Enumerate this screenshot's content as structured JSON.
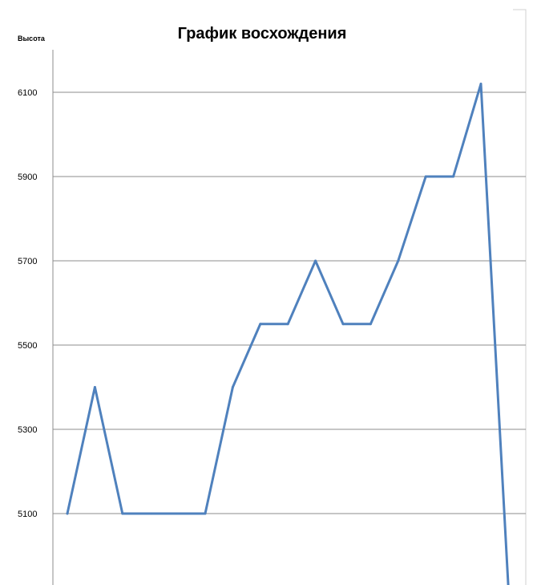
{
  "chart_data": {
    "type": "line",
    "title": "График восхождения",
    "xlabel": "",
    "ylabel": "Высота",
    "ylim": [
      4900,
      6250
    ],
    "y_ticks": [
      5100,
      5300,
      5500,
      5700,
      5900,
      6100
    ],
    "grid": true,
    "legend": "none",
    "colors": {
      "series": "#4f81bd",
      "grid": "#8c8c8c"
    },
    "series": [
      {
        "values": [
          5100,
          5400,
          5100,
          5100,
          5100,
          5100,
          5400,
          5550,
          5550,
          5700,
          5550,
          5550,
          5700,
          5900,
          5900,
          6120,
          4920
        ]
      }
    ]
  }
}
